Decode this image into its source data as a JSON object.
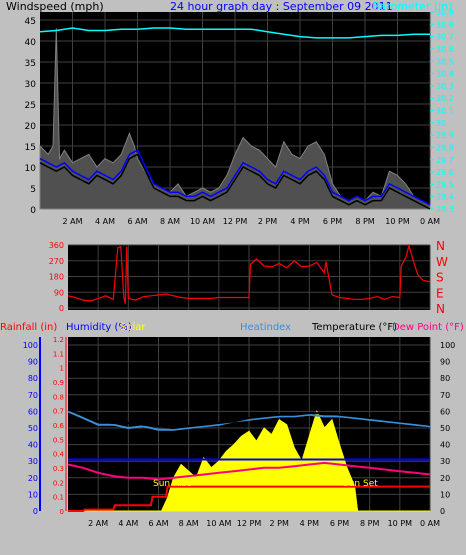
{
  "colors": {
    "frame": "#c0c0c0",
    "plot_bg": "#000000",
    "grid": "#404040",
    "wind": "#000000",
    "gust_bg": "#808080",
    "avg_wind": "#0000ff",
    "barometer": "#00ffff",
    "direction": "#ff0000",
    "rain": "#ff0000",
    "humidity": "#0000ff",
    "solar": "#ffff00",
    "heatindex": "#3a8fd8",
    "temperature": "#000000",
    "dewpoint": "#ff0080",
    "text_black": "#000000",
    "text_blue": "#0000ff",
    "text_red": "#ff0000"
  },
  "chart_data": [
    {
      "type": "line",
      "title": "24 hour graph day : September 09 2011",
      "left_label": "Windspeed (mph)",
      "right_label": "Barometer (in)",
      "x_tick_labels": [
        "2 AM",
        "4 AM",
        "6 AM",
        "8 AM",
        "10 AM",
        "12 PM",
        "2 PM",
        "4 PM",
        "6 PM",
        "8 PM",
        "10 PM",
        "0 AM"
      ],
      "y_left_ticks": [
        "0",
        "5",
        "10",
        "15",
        "20",
        "25",
        "30",
        "35",
        "40",
        "45"
      ],
      "y_right_ticks": [
        "29.3",
        "29.4",
        "29.5",
        "29.6",
        "29.7",
        "29.8",
        "29.9",
        "30",
        "30.1",
        "30.2",
        "30.3",
        "30.4",
        "30.5",
        "30.6",
        "30.7",
        "30.8",
        "30.9"
      ],
      "ylim_left": [
        0,
        45
      ],
      "ylim_right": [
        29.3,
        30.9
      ],
      "x_hours": [
        0,
        24
      ],
      "series": [
        {
          "key": "gust",
          "x": [
            0,
            0.5,
            0.8,
            1.0,
            1.2,
            1.5,
            2.0,
            2.5,
            3.0,
            3.5,
            4.0,
            4.5,
            5.0,
            5.5,
            5.8,
            6.0,
            6.3,
            6.6,
            7.0,
            7.5,
            8.0,
            8.5,
            9.0,
            9.5,
            10.0,
            10.5,
            11.0,
            11.5,
            12.0,
            12.5,
            13.0,
            13.5,
            14.0,
            14.5,
            15.0,
            15.5,
            16.0,
            16.5,
            17.0,
            17.5,
            18.0,
            18.5,
            19.0,
            19.5,
            20.0,
            20.5,
            21.0,
            21.5,
            22.0,
            22.5,
            23.0,
            23.5,
            24.0
          ],
          "values": [
            15,
            13,
            15,
            43,
            12,
            14,
            11,
            12,
            13,
            10,
            12,
            11,
            13,
            18,
            15,
            12,
            10,
            8,
            6,
            5,
            4,
            6,
            3,
            4,
            5,
            4,
            5,
            8,
            13,
            17,
            15,
            14,
            12,
            10,
            16,
            13,
            12,
            15,
            16,
            13,
            6,
            3,
            2,
            3,
            2,
            4,
            3,
            9,
            8,
            6,
            3,
            2,
            1
          ]
        },
        {
          "key": "wind",
          "x": [
            0,
            0.5,
            1.0,
            1.5,
            2.0,
            2.5,
            3.0,
            3.5,
            4.0,
            4.5,
            5.0,
            5.5,
            6.0,
            6.5,
            7.0,
            7.5,
            8.0,
            8.5,
            9.0,
            9.5,
            10.0,
            10.5,
            11.0,
            11.5,
            12.0,
            12.5,
            13.0,
            13.5,
            14.0,
            14.5,
            15.0,
            15.5,
            16.0,
            16.5,
            17.0,
            17.5,
            18.0,
            18.5,
            19.0,
            19.5,
            20.0,
            20.5,
            21.0,
            21.5,
            22.0,
            22.5,
            23.0,
            23.5,
            24.0
          ],
          "values": [
            11,
            10,
            9,
            10,
            8,
            7,
            6,
            8,
            7,
            6,
            8,
            12,
            13,
            9,
            5,
            4,
            3,
            3,
            2,
            2,
            3,
            2,
            3,
            4,
            7,
            10,
            9,
            8,
            6,
            5,
            8,
            7,
            6,
            8,
            9,
            7,
            3,
            2,
            1,
            2,
            1,
            2,
            2,
            5,
            4,
            3,
            2,
            1,
            0
          ]
        },
        {
          "key": "avg_wind",
          "x": [
            0,
            0.5,
            1.0,
            1.5,
            2.0,
            2.5,
            3.0,
            3.5,
            4.0,
            4.5,
            5.0,
            5.5,
            6.0,
            6.5,
            7.0,
            7.5,
            8.0,
            8.5,
            9.0,
            9.5,
            10.0,
            10.5,
            11.0,
            11.5,
            12.0,
            12.5,
            13.0,
            13.5,
            14.0,
            14.5,
            15.0,
            15.5,
            16.0,
            16.5,
            17.0,
            17.5,
            18.0,
            18.5,
            19.0,
            19.5,
            20.0,
            20.5,
            21.0,
            21.5,
            22.0,
            22.5,
            23.0,
            23.5,
            24.0
          ],
          "values": [
            12,
            11,
            10,
            11,
            9,
            8,
            7,
            9,
            8,
            7,
            9,
            13,
            14,
            10,
            6,
            5,
            4,
            4,
            3,
            3,
            4,
            3,
            4,
            5,
            8,
            11,
            10,
            9,
            7,
            6,
            9,
            8,
            7,
            9,
            10,
            8,
            4,
            3,
            2,
            3,
            2,
            3,
            3,
            6,
            5,
            4,
            3,
            2,
            1
          ]
        },
        {
          "key": "barometer",
          "x": [
            0,
            1,
            2,
            3,
            4,
            5,
            6,
            7,
            8,
            9,
            10,
            11,
            12,
            13,
            14,
            15,
            16,
            17,
            18,
            19,
            20,
            21,
            22,
            23,
            24
          ],
          "values": [
            30.74,
            30.75,
            30.77,
            30.75,
            30.75,
            30.76,
            30.76,
            30.77,
            30.77,
            30.76,
            30.76,
            30.76,
            30.76,
            30.76,
            30.74,
            30.72,
            30.7,
            30.69,
            30.69,
            30.69,
            30.7,
            30.71,
            30.71,
            30.72,
            30.72
          ]
        }
      ]
    },
    {
      "type": "line",
      "y_left_ticks": [
        "0",
        "90",
        "180",
        "270",
        "360"
      ],
      "direction_labels": [
        "N",
        "W",
        "S",
        "E",
        "N"
      ],
      "ylim": [
        0,
        360
      ],
      "series": [
        {
          "key": "direction",
          "x": [
            0,
            0.5,
            1.0,
            1.5,
            2.0,
            2.5,
            3.0,
            3.3,
            3.5,
            3.7,
            3.8,
            3.9,
            4.0,
            4.5,
            5.0,
            5.5,
            6.0,
            6.5,
            7.0,
            7.5,
            8.0,
            8.5,
            9.0,
            9.5,
            10.0,
            10.5,
            11.0,
            11.5,
            12.0,
            12.1,
            12.5,
            13.0,
            13.5,
            14.0,
            14.5,
            15.0,
            15.5,
            16.0,
            16.5,
            17.0,
            17.1,
            17.5,
            18.0,
            18.5,
            19.0,
            19.5,
            20.0,
            20.5,
            21.0,
            21.5,
            22.0,
            22.1,
            22.4,
            22.6,
            23.0,
            23.2,
            23.5,
            24.0
          ],
          "values": [
            70,
            60,
            45,
            40,
            55,
            70,
            50,
            345,
            350,
            60,
            25,
            350,
            55,
            45,
            65,
            70,
            75,
            80,
            70,
            60,
            55,
            55,
            55,
            55,
            60,
            60,
            60,
            60,
            60,
            250,
            280,
            240,
            235,
            255,
            230,
            270,
            235,
            240,
            260,
            200,
            265,
            75,
            60,
            55,
            50,
            50,
            55,
            65,
            50,
            65,
            60,
            240,
            290,
            355,
            240,
            190,
            160,
            150
          ]
        }
      ]
    },
    {
      "type": "line",
      "legend": [
        "Rainfall (in)",
        "Humidity (%)",
        "Solar",
        "Heatindex",
        "Temperature (°F)",
        "Dew Point (°F)"
      ],
      "y_left_ticks": [
        "0",
        "0.1",
        "0.2",
        "0.3",
        "0.4",
        "0.5",
        "0.6",
        "0.7",
        "0.8",
        "0.9",
        "1",
        "1.1",
        "1.2"
      ],
      "y_hum_ticks": [
        "0",
        "10",
        "20",
        "30",
        "40",
        "50",
        "60",
        "70",
        "80",
        "90",
        "100"
      ],
      "y_right_ticks": [
        "0",
        "10",
        "20",
        "30",
        "40",
        "50",
        "60",
        "70",
        "80",
        "90",
        "100"
      ],
      "ylim_temp": [
        0,
        100
      ],
      "ylim_rain": [
        0,
        1.2
      ],
      "annotations": [
        "Sun Rise",
        "Sun Set"
      ],
      "series": [
        {
          "key": "temperature",
          "x": [
            0,
            1,
            2,
            3,
            4,
            5,
            6,
            7,
            8,
            9,
            10,
            11,
            12,
            13,
            14,
            15,
            16,
            17,
            18,
            19,
            20,
            21,
            22,
            23,
            24
          ],
          "values": [
            61,
            58,
            54,
            53,
            53,
            52,
            51,
            50,
            51,
            52,
            53,
            54,
            56,
            57,
            58,
            58,
            59,
            59,
            58,
            57,
            56,
            55,
            54,
            53,
            52
          ]
        },
        {
          "key": "heatindex",
          "x": [
            0,
            1,
            2,
            3,
            4,
            5,
            6,
            7,
            8,
            9,
            10,
            11,
            12,
            13,
            14,
            15,
            16,
            17,
            18,
            19,
            20,
            21,
            22,
            23,
            24
          ],
          "values": [
            60,
            56,
            52,
            52,
            50,
            51,
            49,
            49,
            50,
            51,
            52,
            54,
            55,
            56,
            57,
            57,
            58,
            57,
            57,
            56,
            55,
            54,
            53,
            52,
            51
          ]
        },
        {
          "key": "dewpoint",
          "x": [
            0,
            1,
            2,
            3,
            4,
            5,
            6,
            7,
            8,
            9,
            10,
            11,
            12,
            13,
            14,
            15,
            16,
            17,
            18,
            19,
            20,
            21,
            22,
            23,
            24
          ],
          "values": [
            28,
            26,
            23,
            21,
            20,
            20,
            19,
            20,
            21,
            22,
            23,
            24,
            25,
            26,
            26,
            27,
            28,
            29,
            28,
            27,
            26,
            25,
            24,
            23,
            22
          ]
        },
        {
          "key": "humidity",
          "x": [
            0,
            24
          ],
          "values": [
            31,
            31
          ]
        },
        {
          "key": "rain",
          "x": [
            0,
            1.0,
            1.1,
            3.0,
            3.1,
            5.5,
            5.6,
            6.5,
            6.6,
            19.0,
            19.1,
            24.0
          ],
          "values": [
            0,
            0,
            0.01,
            0.01,
            0.04,
            0.04,
            0.1,
            0.1,
            0.17,
            0.17,
            0.17,
            0.17
          ]
        },
        {
          "key": "solar",
          "x": [
            0,
            6.2,
            6.6,
            7.0,
            7.5,
            8.0,
            8.5,
            9.0,
            9.5,
            10.0,
            10.5,
            11.0,
            11.5,
            12.0,
            12.5,
            13.0,
            13.5,
            14.0,
            14.5,
            15.0,
            15.5,
            16.0,
            16.5,
            17.0,
            17.5,
            18.0,
            18.5,
            19.0,
            19.2,
            24.0
          ],
          "values": [
            0,
            0,
            8,
            20,
            28,
            24,
            20,
            32,
            26,
            30,
            36,
            40,
            45,
            48,
            42,
            50,
            46,
            55,
            52,
            38,
            30,
            45,
            60,
            50,
            55,
            40,
            26,
            15,
            0,
            0
          ]
        }
      ]
    }
  ]
}
